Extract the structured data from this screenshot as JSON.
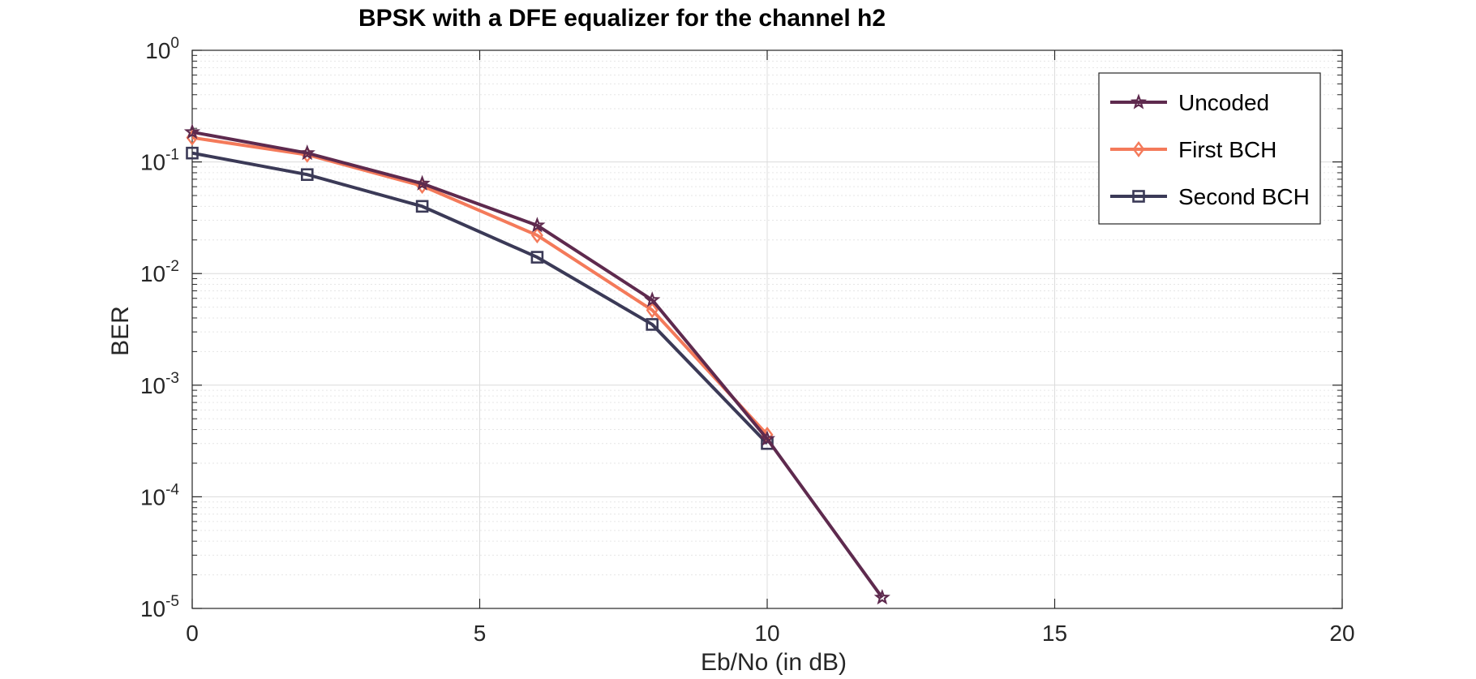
{
  "chart_data": {
    "type": "line",
    "title": "BPSK with a DFE equalizer for the channel h2",
    "xlabel": "Eb/No (in dB)",
    "ylabel": "BER",
    "yscale": "log",
    "xlim": [
      0,
      20
    ],
    "ylim": [
      1e-05,
      1
    ],
    "grid": true,
    "minor_grid": true,
    "xticks": [
      0,
      5,
      10,
      15,
      20
    ],
    "xtick_labels": [
      "0",
      "5",
      "10",
      "15",
      "20"
    ],
    "yticks": [
      1,
      0.1,
      0.01,
      0.001,
      0.0001,
      1e-05
    ],
    "ytick_labels": [
      {
        "base": "10",
        "exp": "0"
      },
      {
        "base": "10",
        "exp": "-1"
      },
      {
        "base": "10",
        "exp": "-2"
      },
      {
        "base": "10",
        "exp": "-3"
      },
      {
        "base": "10",
        "exp": "-4"
      },
      {
        "base": "10",
        "exp": "-5"
      }
    ],
    "legend_position": "top-right",
    "series": [
      {
        "name": "Uncoded",
        "color": "#5e2a4e",
        "marker": "star",
        "x": [
          0,
          2,
          4,
          6,
          8,
          10,
          12
        ],
        "values": [
          0.185,
          0.12,
          0.064,
          0.027,
          0.0058,
          0.00033,
          1.25e-05
        ]
      },
      {
        "name": "First BCH",
        "color": "#f47a5a",
        "marker": "diamond",
        "x": [
          0,
          2,
          4,
          6,
          8,
          10
        ],
        "values": [
          0.165,
          0.116,
          0.061,
          0.022,
          0.0047,
          0.00036
        ]
      },
      {
        "name": "Second BCH",
        "color": "#3b3a57",
        "marker": "square",
        "x": [
          0,
          2,
          4,
          6,
          8,
          10
        ],
        "values": [
          0.12,
          0.077,
          0.04,
          0.014,
          0.0035,
          0.0003
        ]
      }
    ]
  }
}
